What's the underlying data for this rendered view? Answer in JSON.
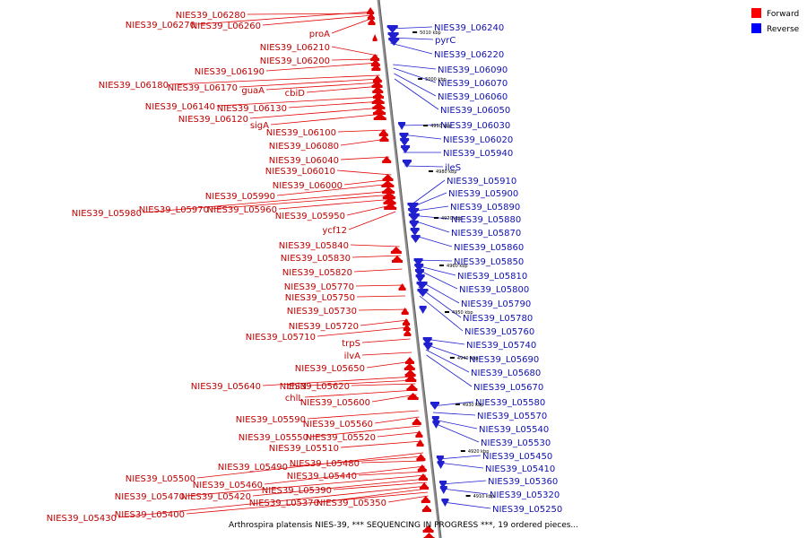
{
  "legend": {
    "forward": {
      "label": "Forward",
      "color": "#ff0000"
    },
    "reverse": {
      "label": "Reverse",
      "color": "#0000ff"
    }
  },
  "caption": "Arthrospira platensis NIES-39, *** SEQUENCING IN PROGRESS ***, 19 ordered pieces...",
  "colors": {
    "forward": "#e00000",
    "reverse": "#2020d0",
    "axis": "#909090",
    "label_forward": "#c00000",
    "label_reverse": "#1010b0"
  },
  "axis_ticks": [
    "5010 kbp",
    "5000 kbp",
    "4990 kbp",
    "4980 kbp",
    "4970 kbp",
    "4960 kbp",
    "4950 kbp",
    "4940 kbp",
    "4930 kbp",
    "4920 kbp",
    "4910 kbp"
  ],
  "forward_labels": [
    "NIES39_L06280",
    "NIES39_L06270",
    "NIES39_L06260",
    "proA",
    "NIES39_L06210",
    "NIES39_L06200",
    "NIES39_L06190",
    "NIES39_L06180",
    "NIES39_L06170",
    "guaA",
    "cbiD",
    "NIES39_L06140",
    "NIES39_L06130",
    "NIES39_L06120",
    "sigA",
    "NIES39_L06100",
    "NIES39_L06080",
    "NIES39_L06040",
    "NIES39_L06010",
    "NIES39_L06000",
    "NIES39_L05990",
    "NIES39_L05980",
    "NIES39_L05970",
    "NIES39_L05960",
    "NIES39_L05950",
    "ycf12",
    "NIES39_L05840",
    "NIES39_L05830",
    "NIES39_L05820",
    "NIES39_L05770",
    "NIES39_L05750",
    "NIES39_L05730",
    "NIES39_L05720",
    "NIES39_L05710",
    "trpS",
    "ilvA",
    "NIES39_L05650",
    "NIES39_L05640",
    "chlN",
    "NIES39_L05620",
    "chlL",
    "NIES39_L05600",
    "NIES39_L05590",
    "NIES39_L05560",
    "NIES39_L05550",
    "NIES39_L05520",
    "NIES39_L05510",
    "NIES39_L05500",
    "NIES39_L05490",
    "NIES39_L05480",
    "NIES39_L05460",
    "NIES39_L05440",
    "NIES39_L05470",
    "NIES39_L05420",
    "NIES39_L05390",
    "NIES39_L05370",
    "NIES39_L05350",
    "NIES39_L05430",
    "NIES39_L05400"
  ],
  "reverse_labels": [
    "NIES39_L06240",
    "pyrC",
    "NIES39_L06220",
    "NIES39_L06090",
    "NIES39_L06070",
    "NIES39_L06060",
    "NIES39_L06050",
    "NIES39_L06030",
    "NIES39_L06020",
    "NIES39_L05940",
    "ileS",
    "NIES39_L05910",
    "NIES39_L05900",
    "NIES39_L05890",
    "NIES39_L05880",
    "NIES39_L05870",
    "NIES39_L05860",
    "NIES39_L05850",
    "NIES39_L05810",
    "NIES39_L05800",
    "NIES39_L05790",
    "NIES39_L05780",
    "NIES39_L05760",
    "NIES39_L05740",
    "NIES39_L05690",
    "NIES39_L05680",
    "NIES39_L05670",
    "NIES39_L05580",
    "NIES39_L05570",
    "NIES39_L05540",
    "NIES39_L05530",
    "NIES39_L05450",
    "NIES39_L05410",
    "NIES39_L05360",
    "NIES39_L05320",
    "NIES39_L05250"
  ]
}
